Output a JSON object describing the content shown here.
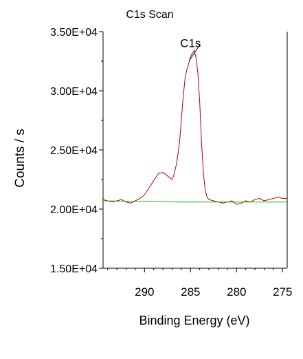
{
  "chart_data": {
    "type": "line",
    "title": "C1s Scan",
    "xlabel": "Binding Energy (eV)",
    "ylabel": "Counts / s",
    "x_reversed": true,
    "xlim": [
      294.5,
      274.5
    ],
    "ylim": [
      15000,
      35000
    ],
    "x_ticks": [
      290,
      285,
      280,
      275
    ],
    "y_ticks": [
      15000,
      20000,
      25000,
      30000,
      35000
    ],
    "y_tick_labels": [
      "1.50E+04",
      "2.00E+04",
      "2.50E+04",
      "3.00E+04",
      "3.50E+04"
    ],
    "grid": false,
    "annotations": [
      {
        "text": "C1s",
        "x": 285.0,
        "y": 33700
      }
    ],
    "series": [
      {
        "color": "#b00000",
        "x": [
          294.5,
          294.0,
          293.5,
          293.0,
          292.5,
          292.0,
          291.5,
          291.0,
          290.5,
          290.0,
          289.5,
          289.0,
          288.5,
          288.0,
          287.5,
          287.0,
          286.8,
          286.5,
          286.2,
          286.0,
          285.8,
          285.6,
          285.4,
          285.2,
          285.0,
          284.8,
          284.6,
          284.4,
          284.2,
          284.0,
          283.8,
          283.6,
          283.4,
          283.2,
          283.0,
          282.5,
          282.0,
          281.5,
          281.0,
          280.5,
          280.0,
          279.5,
          279.0,
          278.5,
          278.0,
          277.5,
          277.0,
          276.5,
          276.0,
          275.5,
          275.0,
          274.5
        ],
        "y": [
          20800,
          20700,
          20600,
          20700,
          20800,
          20600,
          20500,
          20700,
          20900,
          21200,
          21800,
          22400,
          23000,
          23100,
          22800,
          22500,
          22900,
          23900,
          25600,
          27500,
          29500,
          31000,
          31800,
          32300,
          32900,
          33200,
          33400,
          32800,
          31500,
          29000,
          25500,
          23000,
          21600,
          21000,
          20800,
          20700,
          20600,
          20500,
          20600,
          20700,
          20400,
          20500,
          20700,
          20600,
          20800,
          20900,
          20700,
          20800,
          20900,
          21000,
          20900,
          20900
        ]
      },
      {
        "color": "#00c000",
        "x": [
          294.5,
          286.5,
          274.5
        ],
        "y": [
          20700,
          20600,
          20600
        ]
      }
    ]
  }
}
